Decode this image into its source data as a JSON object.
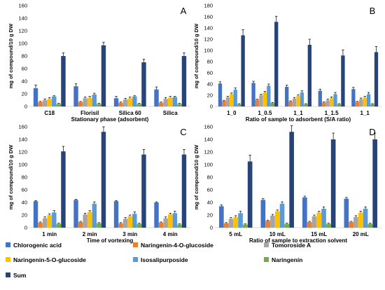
{
  "chart_data": [
    {
      "type": "bar",
      "panel_label": "A",
      "ylabel": "mg of compound/10 g  DW",
      "xlabel": "Stationary phase (adsorbent)",
      "ylim": [
        0,
        160
      ],
      "yticks": [
        0,
        20,
        40,
        60,
        80,
        100,
        120,
        140,
        160
      ],
      "categories": [
        "C18",
        "Florisil",
        "Silica 60",
        "Silica"
      ],
      "series": [
        {
          "name": "Chlorogenic acid",
          "values": [
            29,
            32,
            13,
            27
          ],
          "errors": [
            5,
            4,
            3,
            4
          ]
        },
        {
          "name": "Naringenin-4-O-glucoside",
          "values": [
            7,
            7,
            6,
            6
          ],
          "errors": [
            1,
            1,
            1,
            1
          ]
        },
        {
          "name": "Tomoroside A",
          "values": [
            10,
            13,
            11,
            12
          ],
          "errors": [
            2,
            2,
            2,
            2
          ]
        },
        {
          "name": "Naringenin-5-O-glucoside",
          "values": [
            12,
            14,
            13,
            14
          ],
          "errors": [
            2,
            2,
            2,
            2
          ]
        },
        {
          "name": "Isosalipurposide",
          "values": [
            16,
            19,
            16,
            15
          ],
          "errors": [
            1,
            2,
            1,
            1
          ]
        },
        {
          "name": "Naringenin",
          "values": [
            4,
            4,
            4,
            4
          ],
          "errors": [
            1,
            1,
            1,
            1
          ]
        },
        {
          "name": "Sum",
          "values": [
            80,
            97,
            70,
            80
          ],
          "errors": [
            5,
            5,
            5,
            5
          ]
        }
      ]
    },
    {
      "type": "bar",
      "panel_label": "B",
      "ylabel": "mg of compound/10 g  DW",
      "xlabel": "Ratio of sample to adsorbent (S/A ratio)",
      "ylim": [
        0,
        180
      ],
      "yticks": [
        0,
        20,
        40,
        60,
        80,
        100,
        120,
        140,
        160,
        180
      ],
      "categories": [
        "1_0",
        "1_0.5",
        "1_1",
        "1_1.5",
        "1_1"
      ],
      "series": [
        {
          "name": "Chlorogenic acid",
          "values": [
            41,
            42,
            35,
            28,
            31
          ],
          "errors": [
            3,
            3,
            3,
            3,
            3
          ]
        },
        {
          "name": "Naringenin-4-O-glucoside",
          "values": [
            10,
            12,
            9,
            7,
            8
          ],
          "errors": [
            1,
            1,
            1,
            1,
            1
          ]
        },
        {
          "name": "Tomoroside A",
          "values": [
            16,
            20,
            14,
            11,
            13
          ],
          "errors": [
            2,
            2,
            2,
            2,
            2
          ]
        },
        {
          "name": "Naringenin-5-O-glucoside",
          "values": [
            22,
            25,
            19,
            15,
            16
          ],
          "errors": [
            2,
            2,
            2,
            2,
            2
          ]
        },
        {
          "name": "Isosalipurposide",
          "values": [
            30,
            37,
            25,
            22,
            22
          ],
          "errors": [
            3,
            3,
            3,
            3,
            3
          ]
        },
        {
          "name": "Naringenin",
          "values": [
            4,
            6,
            4,
            4,
            4
          ],
          "errors": [
            1,
            1,
            1,
            1,
            1
          ]
        },
        {
          "name": "Sum",
          "values": [
            127,
            151,
            110,
            91,
            97
          ],
          "errors": [
            10,
            10,
            10,
            10,
            10
          ]
        }
      ]
    },
    {
      "type": "bar",
      "panel_label": "C",
      "ylabel": "mg of compound/10 g  DW",
      "xlabel": "Time of vortexing",
      "ylim": [
        0,
        160
      ],
      "yticks": [
        0,
        20,
        40,
        60,
        80,
        100,
        120,
        140,
        160
      ],
      "categories": [
        "1 min",
        "2 min",
        "3 min",
        "4 min"
      ],
      "series": [
        {
          "name": "Chlorogenic acid",
          "values": [
            42,
            44,
            42,
            40
          ],
          "errors": [
            1,
            1,
            1,
            1
          ]
        },
        {
          "name": "Naringenin-4-O-glucoside",
          "values": [
            8,
            9,
            7,
            8
          ],
          "errors": [
            1,
            1,
            1,
            1
          ]
        },
        {
          "name": "Tomoroside A",
          "values": [
            15,
            21,
            14,
            15
          ],
          "errors": [
            2,
            2,
            2,
            2
          ]
        },
        {
          "name": "Naringenin-5-O-glucoside",
          "values": [
            20,
            25,
            18,
            21
          ],
          "errors": [
            2,
            2,
            2,
            2
          ]
        },
        {
          "name": "Isosalipurposide",
          "values": [
            24,
            38,
            22,
            23
          ],
          "errors": [
            3,
            3,
            3,
            3
          ]
        },
        {
          "name": "Naringenin",
          "values": [
            6,
            7,
            6,
            5
          ],
          "errors": [
            1,
            1,
            1,
            1
          ]
        },
        {
          "name": "Sum",
          "values": [
            121,
            152,
            116,
            116
          ],
          "errors": [
            8,
            8,
            8,
            8
          ]
        }
      ]
    },
    {
      "type": "bar",
      "panel_label": "D",
      "ylabel": "mg of compound/10 g  DW",
      "xlabel": "Ratio of sample to extraction solvent",
      "ylim": [
        0,
        160
      ],
      "yticks": [
        0,
        20,
        40,
        60,
        80,
        100,
        120,
        140,
        160
      ],
      "categories": [
        "5 mL",
        "10 mL",
        "15 mL",
        "20 mL"
      ],
      "series": [
        {
          "name": "Chlorogenic acid",
          "values": [
            34,
            44,
            48,
            46
          ],
          "errors": [
            2,
            2,
            2,
            2
          ]
        },
        {
          "name": "Naringenin-4-O-glucoside",
          "values": [
            7,
            11,
            9,
            9
          ],
          "errors": [
            1,
            1,
            1,
            1
          ]
        },
        {
          "name": "Tomoroside A",
          "values": [
            14,
            19,
            18,
            17
          ],
          "errors": [
            2,
            2,
            2,
            2
          ]
        },
        {
          "name": "Naringenin-5-O-glucoside",
          "values": [
            17,
            26,
            24,
            24
          ],
          "errors": [
            2,
            2,
            2,
            2
          ]
        },
        {
          "name": "Isosalipurposide",
          "values": [
            23,
            38,
            30,
            30
          ],
          "errors": [
            3,
            3,
            3,
            3
          ]
        },
        {
          "name": "Naringenin",
          "values": [
            5,
            6,
            6,
            6
          ],
          "errors": [
            1,
            1,
            1,
            1
          ]
        },
        {
          "name": "Sum",
          "values": [
            105,
            152,
            140,
            140
          ],
          "errors": [
            10,
            10,
            10,
            10
          ]
        }
      ]
    }
  ],
  "legend": {
    "placement": "bottom",
    "items": [
      {
        "label": "Chlorogenic acid",
        "color": "#4472c4"
      },
      {
        "label": "Naringenin-4-O-glucoside",
        "color": "#ed7d31"
      },
      {
        "label": "Tomoroside A",
        "color": "#a5a5a5"
      },
      {
        "label": "Naringenin-5-O-glucoside",
        "color": "#ffc000"
      },
      {
        "label": "Isosalipurposide",
        "color": "#5b9bd5"
      },
      {
        "label": "Naringenin",
        "color": "#70ad47"
      },
      {
        "label": "Sum",
        "color": "#264478"
      }
    ]
  }
}
